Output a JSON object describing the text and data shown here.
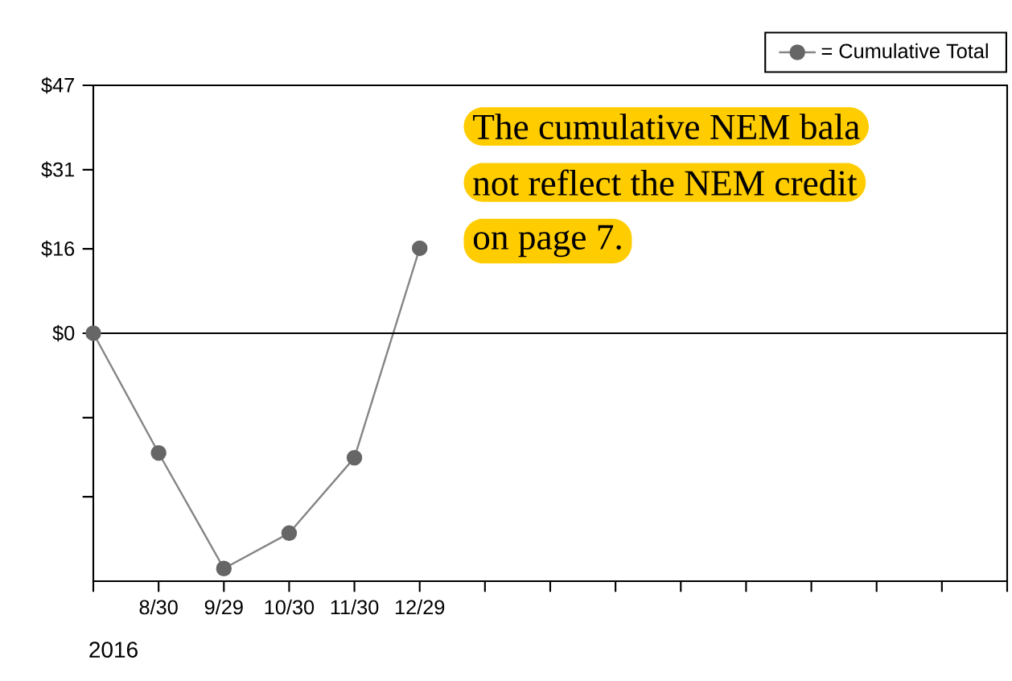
{
  "chart_data": {
    "type": "line",
    "categories": [
      null,
      "8/30",
      "9/29",
      "10/30",
      "11/30",
      "12/29",
      null,
      null,
      null,
      null,
      null,
      null,
      null,
      null,
      null
    ],
    "series": [
      {
        "name": "= Cumulative Total",
        "color": "#666666",
        "values": [
          0,
          -22.7,
          -44.6,
          -37.9,
          -23.6,
          16.1,
          null,
          null,
          null,
          null,
          null,
          null,
          null,
          null,
          null
        ]
      }
    ],
    "ylim": [
      -47,
      47
    ],
    "yticks": [
      {
        "value": 47,
        "label": "$47"
      },
      {
        "value": 31,
        "label": "$31"
      },
      {
        "value": 16,
        "label": "$16"
      },
      {
        "value": 0,
        "label": "$0"
      },
      {
        "value": -16,
        "label": null
      },
      {
        "value": -31,
        "label": null
      }
    ],
    "ref_lines": [
      {
        "axis": "y",
        "value": 0,
        "color": "#000000"
      }
    ],
    "annotations": [
      "2016",
      "The cumulative NEM bala",
      "not reflect the NEM credit",
      "on page 7."
    ],
    "marker": "circle",
    "line_style": "solid",
    "legend": "top right",
    "grid": false
  }
}
